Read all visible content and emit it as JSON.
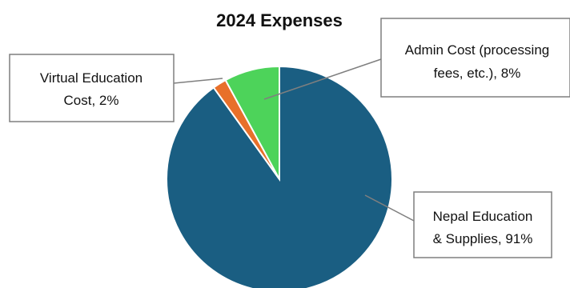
{
  "chart_data": {
    "type": "pie",
    "title": "2024 Expenses",
    "slices": [
      {
        "name": "Nepal Education & Supplies",
        "value": 91,
        "label_lines": [
          "Nepal Education",
          "& Supplies, 91%"
        ],
        "color": "#1a5e82"
      },
      {
        "name": "Virtual Education Cost",
        "value": 2,
        "label_lines": [
          "Virtual Education",
          "Cost, 2%"
        ],
        "color": "#e8702a"
      },
      {
        "name": "Admin Cost (processing fees, etc.)",
        "value": 8,
        "label_lines": [
          "Admin Cost (processing",
          "fees, etc.), 8%"
        ],
        "color": "#4dd35a"
      }
    ]
  }
}
